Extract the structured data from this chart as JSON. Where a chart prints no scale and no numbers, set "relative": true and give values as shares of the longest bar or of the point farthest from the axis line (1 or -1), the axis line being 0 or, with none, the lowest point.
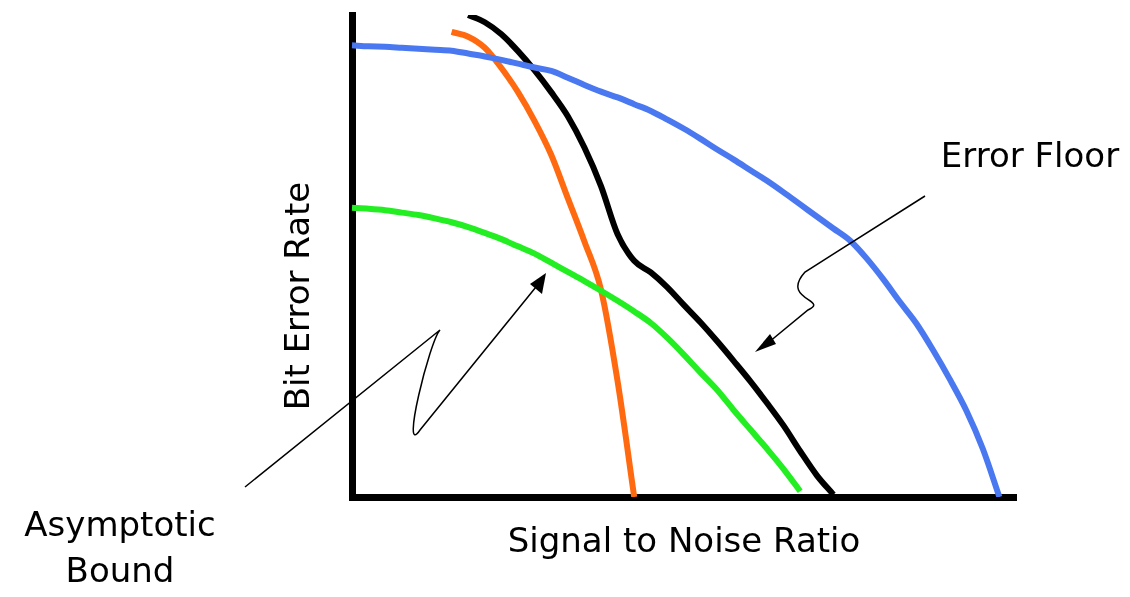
{
  "chart_data": {
    "type": "line",
    "relative": true,
    "xlabel": "Signal to Noise Ratio",
    "ylabel": "Bit Error Rate",
    "annotations": [
      "Error Floor",
      "Asymptotic Bound"
    ],
    "grid": false,
    "legend": false,
    "marker": "none",
    "line_style": "solid",
    "categories": [
      null,
      null,
      null,
      null,
      null,
      null,
      null,
      null,
      null,
      null,
      null,
      null,
      null,
      null,
      null,
      null,
      null,
      null,
      null,
      null,
      null,
      null,
      null,
      null,
      null,
      null,
      null,
      null,
      null,
      null,
      null,
      null,
      null,
      null,
      null,
      null,
      null,
      null,
      null,
      null,
      null
    ],
    "series": [
      {
        "color": "#4a78f0",
        "values": [
          0.937,
          0.935,
          0.934,
          0.932,
          0.93,
          0.928,
          0.926,
          0.92,
          0.914,
          0.907,
          0.899,
          0.891,
          0.884,
          0.87,
          0.855,
          0.841,
          0.829,
          0.815,
          0.801,
          0.783,
          0.764,
          0.743,
          0.721,
          0.7,
          0.678,
          0.656,
          0.632,
          0.607,
          0.582,
          0.557,
          0.532,
          0.495,
          0.452,
          0.405,
          0.36,
          0.305,
          0.245,
          0.18,
          0.1,
          0,
          null
        ]
      },
      {
        "color": "#22ee22",
        "values": [
          0.6,
          0.598,
          0.595,
          0.59,
          0.585,
          0.578,
          0.57,
          0.56,
          0.548,
          0.535,
          0.52,
          0.505,
          0.486,
          0.467,
          0.448,
          0.428,
          0.407,
          0.385,
          0.361,
          0.33,
          0.295,
          0.258,
          0.222,
          0.18,
          0.14,
          0.1,
          0.058,
          0.012,
          null,
          null,
          null,
          null,
          null,
          null,
          null,
          null,
          null,
          null,
          null,
          null,
          null
        ]
      },
      {
        "color": "#ff6a10",
        "values": [
          null,
          null,
          null,
          null,
          null,
          null,
          0.965,
          0.955,
          0.932,
          0.89,
          0.84,
          0.78,
          0.71,
          0.62,
          0.53,
          0.43,
          0.24,
          0,
          null,
          null,
          null,
          null,
          null,
          null,
          null,
          null,
          null,
          null,
          null,
          null,
          null,
          null,
          null,
          null,
          null,
          null,
          null,
          null,
          null,
          null,
          null
        ]
      },
      {
        "color": "#000000",
        "values": [
          null,
          null,
          null,
          null,
          null,
          null,
          null,
          1,
          0.985,
          0.96,
          0.925,
          0.885,
          0.84,
          0.79,
          0.725,
          0.645,
          0.545,
          0.49,
          0.466,
          0.435,
          0.398,
          0.362,
          0.323,
          0.282,
          0.24,
          0.195,
          0.148,
          0.095,
          0.045,
          0.005,
          null,
          null,
          null,
          null,
          null,
          null,
          null,
          null,
          null,
          null,
          null
        ]
      }
    ]
  }
}
